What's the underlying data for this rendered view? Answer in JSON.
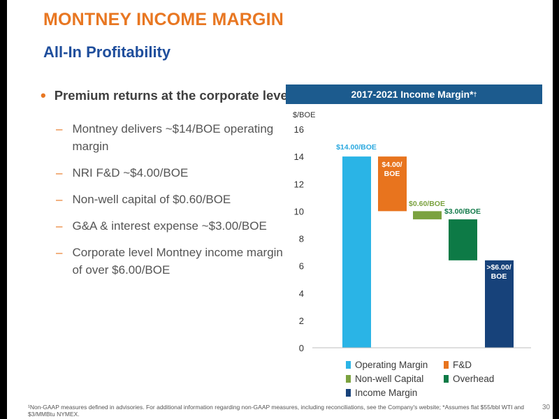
{
  "slide": {
    "title": "MONTNEY INCOME MARGIN",
    "subtitle": "All-In Profitability",
    "bullet": "Premium returns at the corporate level",
    "sub_bullets": [
      "Montney delivers ~$14/BOE operating margin",
      "NRI F&D ~$4.00/BOE",
      "Non-well capital of $0.60/BOE",
      "G&A & interest expense ~$3.00/BOE",
      "Corporate level Montney income margin of over $6.00/BOE"
    ],
    "footnote": "¹Non-GAAP measures defined in advisories. For additional information regarding non-GAAP measures, including reconciliations, see the Company's website; *Assumes flat $55/bbl WTI and $3/MMBtu NYMEX.",
    "page_number": "30"
  },
  "chart_data": {
    "type": "bar",
    "title": "2017-2021 Income Margin*",
    "title_mark": "†",
    "ylabel": "$/BOE",
    "ylim": [
      0,
      16
    ],
    "yticks": [
      0,
      2,
      4,
      6,
      8,
      10,
      12,
      14,
      16
    ],
    "categories": [
      "Operating Margin",
      "F&D",
      "Non-well Capital",
      "Overhead",
      "Income Margin"
    ],
    "bars": [
      {
        "name": "Operating Margin",
        "bottom": 0,
        "top": 14.0,
        "label": "$14.00/BOE",
        "label_color": "#2aa8df",
        "color": "#2ab4e6"
      },
      {
        "name": "F&D",
        "bottom": 10.0,
        "top": 14.0,
        "label": "$4.00/ BOE",
        "label_color": "#ffffff",
        "color": "#e8741e"
      },
      {
        "name": "Non-well Capital",
        "bottom": 9.4,
        "top": 10.0,
        "label": "$0.60/BOE",
        "label_color": "#7ba23f",
        "color": "#7ba23f"
      },
      {
        "name": "Overhead",
        "bottom": 6.4,
        "top": 9.4,
        "label": "$3.00/BOE",
        "label_color": "#137a4a",
        "color": "#0d7a46"
      },
      {
        "name": "Income Margin",
        "bottom": 0,
        "top": 6.4,
        "label": ">$6.00/ BOE",
        "label_color": "#ffffff",
        "color": "#17427a"
      }
    ],
    "legend": [
      {
        "label": "Operating Margin",
        "color": "#2ab4e6"
      },
      {
        "label": "F&D",
        "color": "#e8741e"
      },
      {
        "label": "Non-well Capital",
        "color": "#7ba23f"
      },
      {
        "label": "Overhead",
        "color": "#0d7a46"
      },
      {
        "label": "Income Margin",
        "color": "#17427a"
      }
    ],
    "grid": false,
    "legend_position": "bottom"
  }
}
